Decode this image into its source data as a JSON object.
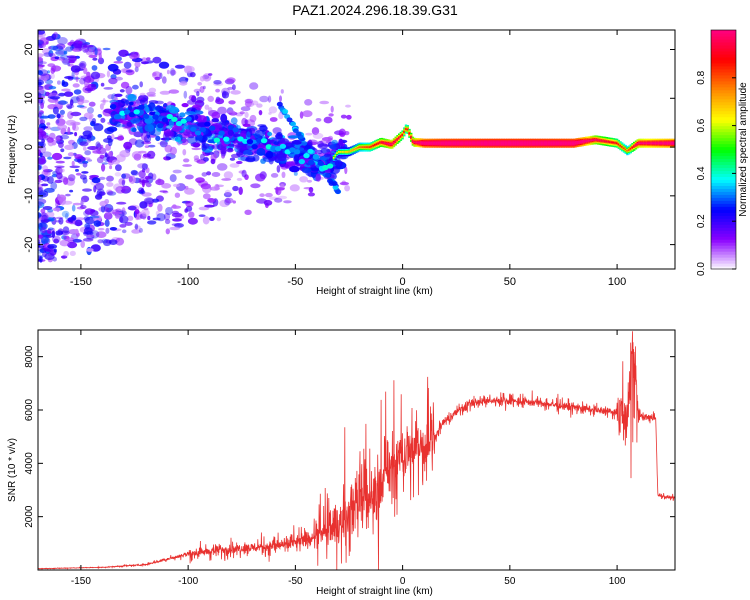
{
  "title": "PAZ1.2024.296.18.39.G31",
  "chart_data": [
    {
      "type": "heatmap",
      "xlabel": "Height of straight line (km)",
      "ylabel": "Frequency (Hz)",
      "xlim": [
        -170,
        127
      ],
      "ylim": [
        -25,
        24
      ],
      "xticks": [
        -150,
        -100,
        -50,
        0,
        50,
        100
      ],
      "yticks": [
        20,
        10,
        0,
        -10,
        -20
      ],
      "colorbar": {
        "label": "Normalized spectral amplitude",
        "range": [
          0,
          1
        ],
        "ticks": [
          "0.0",
          "0.2",
          "0.4",
          "0.6",
          "0.8"
        ],
        "colors": [
          "#ffffff",
          "#8a00ff",
          "#0000ff",
          "#00ffff",
          "#00ff00",
          "#ffff00",
          "#ff8800",
          "#ff0000",
          "#ff0080"
        ]
      },
      "ridge": {
        "x": [
          -170,
          -140,
          -120,
          -100,
          -80,
          -60,
          -45,
          -35,
          -30,
          -25,
          -20,
          -15,
          -10,
          -5,
          0,
          2,
          5,
          10,
          20,
          40,
          60,
          80,
          90,
          100,
          105,
          110,
          127
        ],
        "frequency": [
          10,
          8,
          6,
          4,
          2,
          0,
          -2,
          -4,
          -1,
          -1,
          0,
          0,
          1,
          0.5,
          2.5,
          4,
          1,
          0.8,
          0.8,
          0.8,
          0.8,
          0.8,
          1.5,
          0.8,
          -0.8,
          0.8,
          0.8
        ],
        "amplitude": [
          0.2,
          0.25,
          0.3,
          0.35,
          0.35,
          0.4,
          0.4,
          0.35,
          0.35,
          0.4,
          0.5,
          0.55,
          0.65,
          0.75,
          0.6,
          0.55,
          0.7,
          0.9,
          0.95,
          0.97,
          0.97,
          0.95,
          0.7,
          0.6,
          0.5,
          0.75,
          0.85
        ]
      }
    },
    {
      "type": "line",
      "xlabel": "Height of straight line (km)",
      "ylabel": "SNR (10 * v/v)",
      "xlim": [
        -170,
        127
      ],
      "ylim": [
        0,
        9000
      ],
      "xticks": [
        -150,
        -100,
        -50,
        0,
        50,
        100
      ],
      "yticks": [
        2000,
        4000,
        6000,
        8000
      ],
      "color": "#e8312f",
      "x": [
        -170,
        -140,
        -120,
        -100,
        -80,
        -60,
        -50,
        -40,
        -30,
        -25,
        -20,
        -15,
        -10,
        -5,
        0,
        5,
        10,
        15,
        20,
        30,
        40,
        50,
        60,
        70,
        80,
        90,
        100,
        105,
        107,
        110,
        115,
        118,
        119,
        127
      ],
      "y": [
        50,
        100,
        200,
        600,
        800,
        900,
        1000,
        1300,
        1700,
        2100,
        2700,
        2500,
        3300,
        3800,
        4300,
        4500,
        4800,
        5000,
        5600,
        6200,
        6350,
        6350,
        6300,
        6200,
        6100,
        6000,
        5900,
        5700,
        8800,
        5800,
        5700,
        5700,
        2800,
        2700
      ]
    }
  ]
}
